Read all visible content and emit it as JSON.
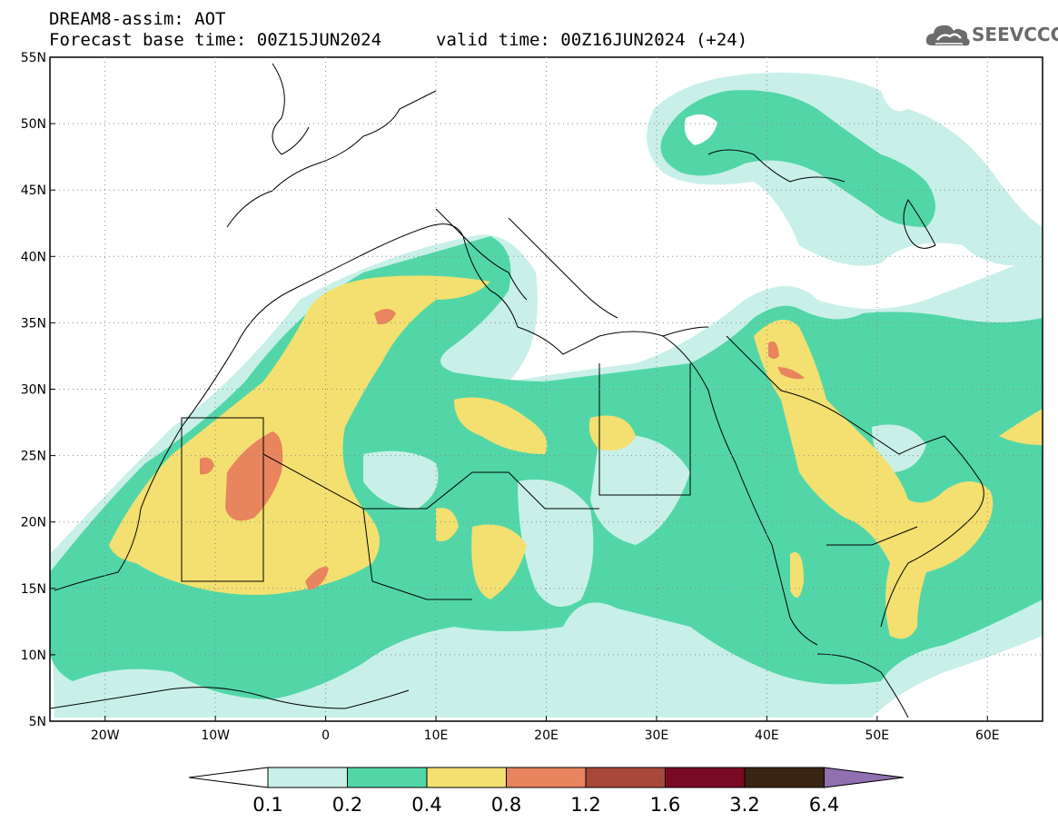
{
  "header": {
    "title": "DREAM8-assim: AOT",
    "base_time": "Forecast base time: 00Z15JUN2024",
    "valid_time": "valid time: 00Z16JUN2024 (+24)",
    "logo": "SEEVCCC"
  },
  "map": {
    "lon_range": [
      -25,
      65
    ],
    "lat_range": [
      5,
      55
    ],
    "lat_labels": [
      "55N",
      "50N",
      "45N",
      "40N",
      "35N",
      "30N",
      "25N",
      "20N",
      "15N",
      "10N",
      "5N"
    ],
    "lon_labels": [
      "20W",
      "10W",
      "0",
      "10E",
      "20E",
      "30E",
      "40E",
      "50E",
      "60E"
    ]
  },
  "colorbar": {
    "labels": [
      "0.1",
      "0.2",
      "0.4",
      "0.8",
      "1.2",
      "1.6",
      "3.2",
      "6.4"
    ],
    "colors": [
      "#ffffff",
      "#c8f0e8",
      "#52d6a8",
      "#f4e070",
      "#e8845e",
      "#a8483a",
      "#780a24",
      "#3a2414",
      "#9070b0"
    ]
  }
}
